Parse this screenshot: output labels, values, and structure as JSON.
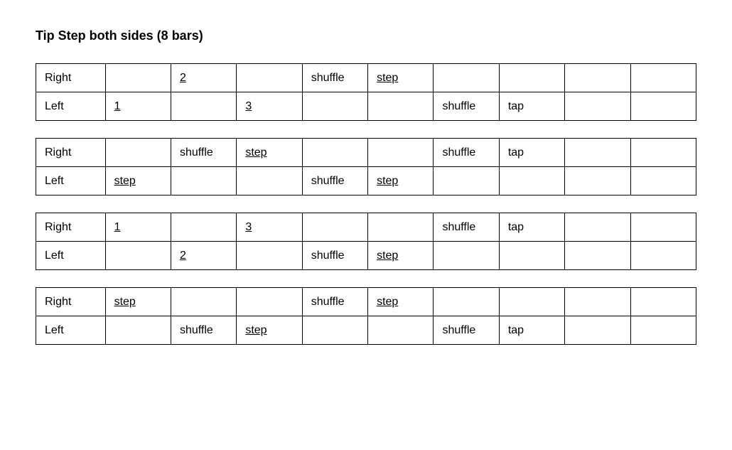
{
  "title": "Tip Step both sides (8 bars)",
  "row_labels": {
    "right": "Right",
    "left": "Left"
  },
  "styling": {
    "background_color": "#ffffff",
    "border_color": "#000000",
    "text_color": "#000000",
    "font_family": "Arial",
    "title_fontsize": 18,
    "cell_fontsize": 16,
    "label_col_width_pct": 10.5,
    "data_col_width_pct": 9.94,
    "data_cols": 9
  },
  "tables": [
    {
      "rows": [
        {
          "label_key": "right",
          "cells": [
            {
              "text": ""
            },
            {
              "text": "2",
              "underline": true
            },
            {
              "text": ""
            },
            {
              "text": "shuffle"
            },
            {
              "text": "step",
              "underline": true
            },
            {
              "text": ""
            },
            {
              "text": ""
            },
            {
              "text": ""
            },
            {
              "text": ""
            }
          ]
        },
        {
          "label_key": "left",
          "cells": [
            {
              "text": "1",
              "underline": true
            },
            {
              "text": ""
            },
            {
              "text": "3",
              "underline": true
            },
            {
              "text": ""
            },
            {
              "text": ""
            },
            {
              "text": "shuffle"
            },
            {
              "text": "tap"
            },
            {
              "text": ""
            },
            {
              "text": ""
            }
          ]
        }
      ]
    },
    {
      "rows": [
        {
          "label_key": "right",
          "cells": [
            {
              "text": ""
            },
            {
              "text": "shuffle"
            },
            {
              "text": "step",
              "underline": true
            },
            {
              "text": ""
            },
            {
              "text": ""
            },
            {
              "text": "shuffle"
            },
            {
              "text": "tap"
            },
            {
              "text": ""
            },
            {
              "text": ""
            }
          ]
        },
        {
          "label_key": "left",
          "cells": [
            {
              "text": "step",
              "underline": true
            },
            {
              "text": ""
            },
            {
              "text": ""
            },
            {
              "text": "shuffle"
            },
            {
              "text": "step",
              "underline": true
            },
            {
              "text": ""
            },
            {
              "text": ""
            },
            {
              "text": ""
            },
            {
              "text": ""
            }
          ]
        }
      ]
    },
    {
      "rows": [
        {
          "label_key": "right",
          "cells": [
            {
              "text": "1",
              "underline": true
            },
            {
              "text": ""
            },
            {
              "text": "3",
              "underline": true
            },
            {
              "text": ""
            },
            {
              "text": ""
            },
            {
              "text": "shuffle"
            },
            {
              "text": "tap"
            },
            {
              "text": ""
            },
            {
              "text": ""
            }
          ]
        },
        {
          "label_key": "left",
          "cells": [
            {
              "text": ""
            },
            {
              "text": "2",
              "underline": true
            },
            {
              "text": ""
            },
            {
              "text": "shuffle"
            },
            {
              "text": "step",
              "underline": true
            },
            {
              "text": ""
            },
            {
              "text": ""
            },
            {
              "text": ""
            },
            {
              "text": ""
            }
          ]
        }
      ]
    },
    {
      "rows": [
        {
          "label_key": "right",
          "cells": [
            {
              "text": "step",
              "underline": true
            },
            {
              "text": ""
            },
            {
              "text": ""
            },
            {
              "text": "shuffle"
            },
            {
              "text": "step",
              "underline": true
            },
            {
              "text": ""
            },
            {
              "text": ""
            },
            {
              "text": ""
            },
            {
              "text": ""
            }
          ]
        },
        {
          "label_key": "left",
          "cells": [
            {
              "text": ""
            },
            {
              "text": "shuffle"
            },
            {
              "text": "step",
              "underline": true
            },
            {
              "text": ""
            },
            {
              "text": ""
            },
            {
              "text": "shuffle"
            },
            {
              "text": "tap"
            },
            {
              "text": ""
            },
            {
              "text": ""
            }
          ]
        }
      ]
    }
  ]
}
